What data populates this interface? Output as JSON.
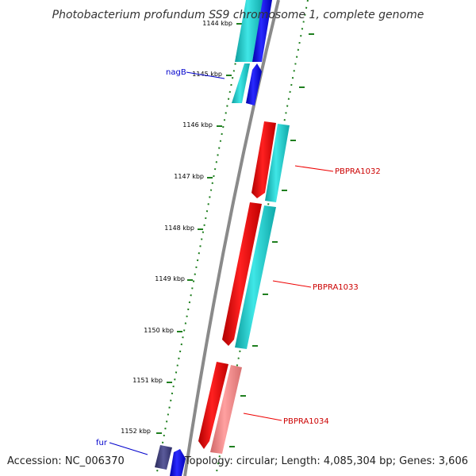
{
  "title": "Photobacterium profundum SS9 chromosome 1, complete genome",
  "accession_label": "Accession: NC_006370",
  "topology_label": "Topology: circular; Length: 4,085,304 bp; Genes: 3,606",
  "colors": {
    "backbone": "#8a8a8a",
    "tick": "#1f7f1f",
    "cds_red": "#ff0000",
    "cds_cyan": "#17c9c9",
    "cds_blue": "#0000ee",
    "cds_pink": "#f08080",
    "cds_dark": "#3b3b7a",
    "label_red": "#cc0000",
    "label_blue": "#0000cc"
  },
  "ticks": [
    {
      "label": "1144 kbp"
    },
    {
      "label": "1145 kbp"
    },
    {
      "label": "1146 kbp"
    },
    {
      "label": "1147 kbp"
    },
    {
      "label": "1148 kbp"
    },
    {
      "label": "1149 kbp"
    },
    {
      "label": "1150 kbp"
    },
    {
      "label": "1151 kbp"
    },
    {
      "label": "1152 kbp"
    }
  ],
  "gene_labels": [
    {
      "name": "nagB",
      "color": "blue"
    },
    {
      "name": "PBPRA1032",
      "color": "red"
    },
    {
      "name": "PBPRA1033",
      "color": "red"
    },
    {
      "name": "PBPRA1034",
      "color": "red"
    },
    {
      "name": "fur",
      "color": "blue"
    }
  ]
}
